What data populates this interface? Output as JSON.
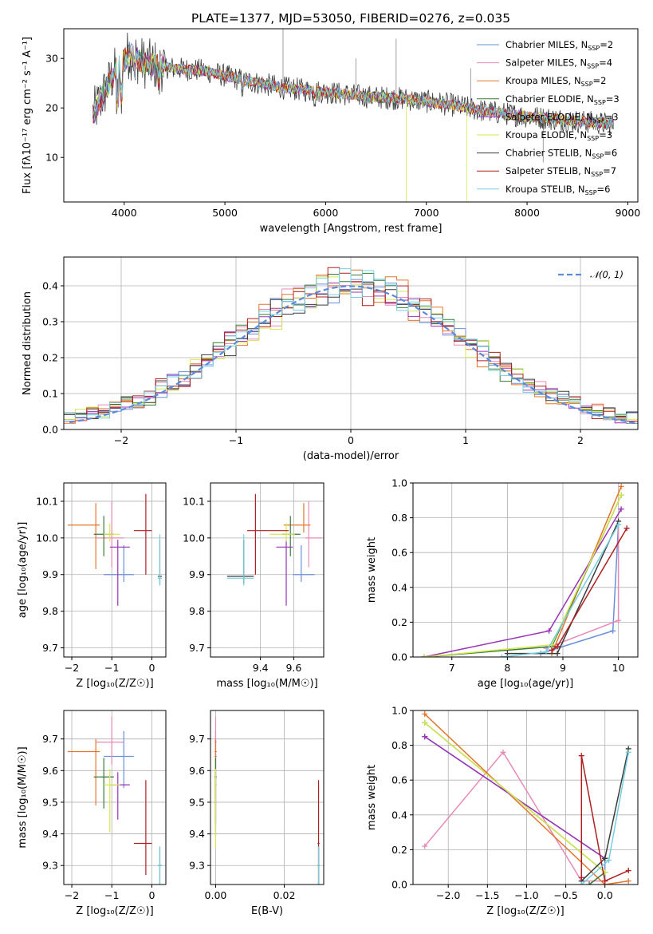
{
  "figure": {
    "title": "PLATE=1377, MJD=53050, FIBERID=0276, z=0.035"
  },
  "models": [
    {
      "name": "Chabrier MILES",
      "nssp": "2",
      "color": "#6b8fdb",
      "Z": -0.7,
      "age": 9.9,
      "mass": 9.645,
      "ebv": 0.0
    },
    {
      "name": "Salpeter MILES",
      "nssp": "4",
      "color": "#e88ab8",
      "Z": -1.0,
      "age": 10.0,
      "mass": 9.69,
      "ebv": 0.0
    },
    {
      "name": "Kroupa MILES",
      "nssp": "2",
      "color": "#e3762b",
      "Z": -1.4,
      "age": 10.035,
      "mass": 9.66,
      "ebv": 0.0
    },
    {
      "name": "Chabrier ELODIE",
      "nssp": "3",
      "color": "#3a7a3a",
      "Z": -1.2,
      "age": 10.01,
      "mass": 9.58,
      "ebv": 0.0
    },
    {
      "name": "Salpeter ELODIE",
      "nssp": "3",
      "color": "#9a33b5",
      "Z": -0.85,
      "age": 9.975,
      "mass": 9.555,
      "ebv": 0.0
    },
    {
      "name": "Kroupa ELODIE",
      "nssp": "3",
      "color": "#d6e84e",
      "Z": -1.05,
      "age": 10.01,
      "mass": 9.555,
      "ebv": 0.0
    },
    {
      "name": "Chabrier STELIB",
      "nssp": "6",
      "color": "#3b3b3b",
      "Z": 0.2,
      "age": 9.895,
      "mass": 9.3,
      "ebv": 0.03
    },
    {
      "name": "Salpeter STELIB",
      "nssp": "7",
      "color": "#b01f1f",
      "Z": -0.15,
      "age": 10.02,
      "mass": 9.37,
      "ebv": 0.03
    },
    {
      "name": "Kroupa STELIB",
      "nssp": "6",
      "color": "#73cfe0",
      "Z": 0.2,
      "age": 9.89,
      "mass": 9.3,
      "ebv": 0.03
    }
  ],
  "chart_data": [
    {
      "id": "spectrum",
      "type": "line",
      "title": "PLATE=1377, MJD=53050, FIBERID=0276, z=0.035",
      "xlabel": "wavelength [Angstrom, rest frame]",
      "ylabel": "Flux [fλ10⁻¹⁷ erg cm⁻² s⁻¹ A⁻¹]",
      "xlim": [
        3400,
        9100
      ],
      "ylim": [
        1,
        36
      ],
      "xticks": [
        4000,
        5000,
        6000,
        7000,
        8000,
        9000
      ],
      "yticks": [
        10,
        20,
        30
      ],
      "legend": "upper right",
      "data_x": [
        3700,
        3900,
        4050,
        4200,
        4500,
        4800,
        5200,
        5600,
        6000,
        6400,
        6800,
        7200,
        7600,
        8000,
        8400,
        8850
      ],
      "data_y": [
        19,
        27,
        31,
        29,
        28,
        27.5,
        25.5,
        24,
        23.2,
        22.3,
        21.8,
        20.8,
        19.3,
        18.3,
        17.5,
        16.7
      ],
      "grid": false
    },
    {
      "id": "residuals",
      "type": "histogram",
      "xlabel": "(data-model)/error",
      "ylabel": "Normed distribution",
      "xlim": [
        -2.5,
        2.5
      ],
      "ylim": [
        0,
        0.48
      ],
      "xticks": [
        -2,
        -1,
        0,
        1,
        2
      ],
      "yticks": [
        0.0,
        0.1,
        0.2,
        0.3,
        0.4
      ],
      "legend_label": "𝒩(0, 1)",
      "legend": "upper right",
      "grid": true
    },
    {
      "id": "age-vs-Z",
      "type": "scatter",
      "xlabel": "Z [log₁₀(Z/Z☉)]",
      "ylabel": "age  [log₁₀(age/yr)]",
      "xlim": [
        -2.2,
        0.35
      ],
      "ylim": [
        9.675,
        10.15
      ],
      "xticks": [
        -2,
        -1,
        0
      ],
      "yticks": [
        9.7,
        9.8,
        9.9,
        10.0,
        10.1
      ],
      "grid": true
    },
    {
      "id": "age-vs-mass",
      "type": "scatter",
      "xlabel": "mass [log₁₀(M/M☉)]",
      "xlim": [
        9.1,
        9.78
      ],
      "ylim": [
        9.675,
        10.15
      ],
      "xticks": [
        9.4,
        9.6
      ],
      "xtick_labels": [
        "9.4",
        "9.6"
      ],
      "yticks": [
        9.7,
        9.8,
        9.9,
        10.0,
        10.1
      ],
      "grid": true
    },
    {
      "id": "weight-vs-age",
      "type": "line",
      "xlabel": "age  [log₁₀(age/yr)]",
      "ylabel": "mass weight",
      "xlim": [
        6.3,
        10.35
      ],
      "ylim": [
        0,
        1
      ],
      "xticks": [
        7,
        8,
        9,
        10
      ],
      "yticks": [
        0.0,
        0.2,
        0.4,
        0.6,
        0.8,
        1.0
      ],
      "grid": true
    },
    {
      "id": "mass-vs-Z",
      "type": "scatter",
      "xlabel": "Z [log₁₀(Z/Z☉)]",
      "ylabel": "mass [log₁₀(M/M☉)]",
      "xlim": [
        -2.2,
        0.35
      ],
      "ylim": [
        9.24,
        9.79
      ],
      "xticks": [
        -2,
        -1,
        0
      ],
      "yticks": [
        9.3,
        9.4,
        9.5,
        9.6,
        9.7
      ],
      "grid": true
    },
    {
      "id": "mass-vs-ebv",
      "type": "scatter",
      "xlabel": "E(B-V)",
      "xlim": [
        -0.0015,
        0.0315
      ],
      "ylim": [
        9.24,
        9.79
      ],
      "xticks": [
        0.0,
        0.02
      ],
      "xtick_labels": [
        "0.00",
        "0.02"
      ],
      "yticks": [
        9.3,
        9.4,
        9.5,
        9.6,
        9.7
      ],
      "grid": true
    },
    {
      "id": "weight-vs-Z",
      "type": "line",
      "xlabel": "Z [log₁₀(Z/Z☉)]",
      "ylabel": "mass weight",
      "xlim": [
        -2.45,
        0.42
      ],
      "ylim": [
        0,
        1
      ],
      "xticks": [
        -2.0,
        -1.5,
        -1.0,
        -0.5,
        0.0
      ],
      "xtick_labels": [
        "−2.0",
        "−1.5",
        "−1.0",
        "−0.5",
        "0.0"
      ],
      "yticks": [
        0.0,
        0.2,
        0.4,
        0.6,
        0.8,
        1.0
      ],
      "grid": true
    }
  ]
}
